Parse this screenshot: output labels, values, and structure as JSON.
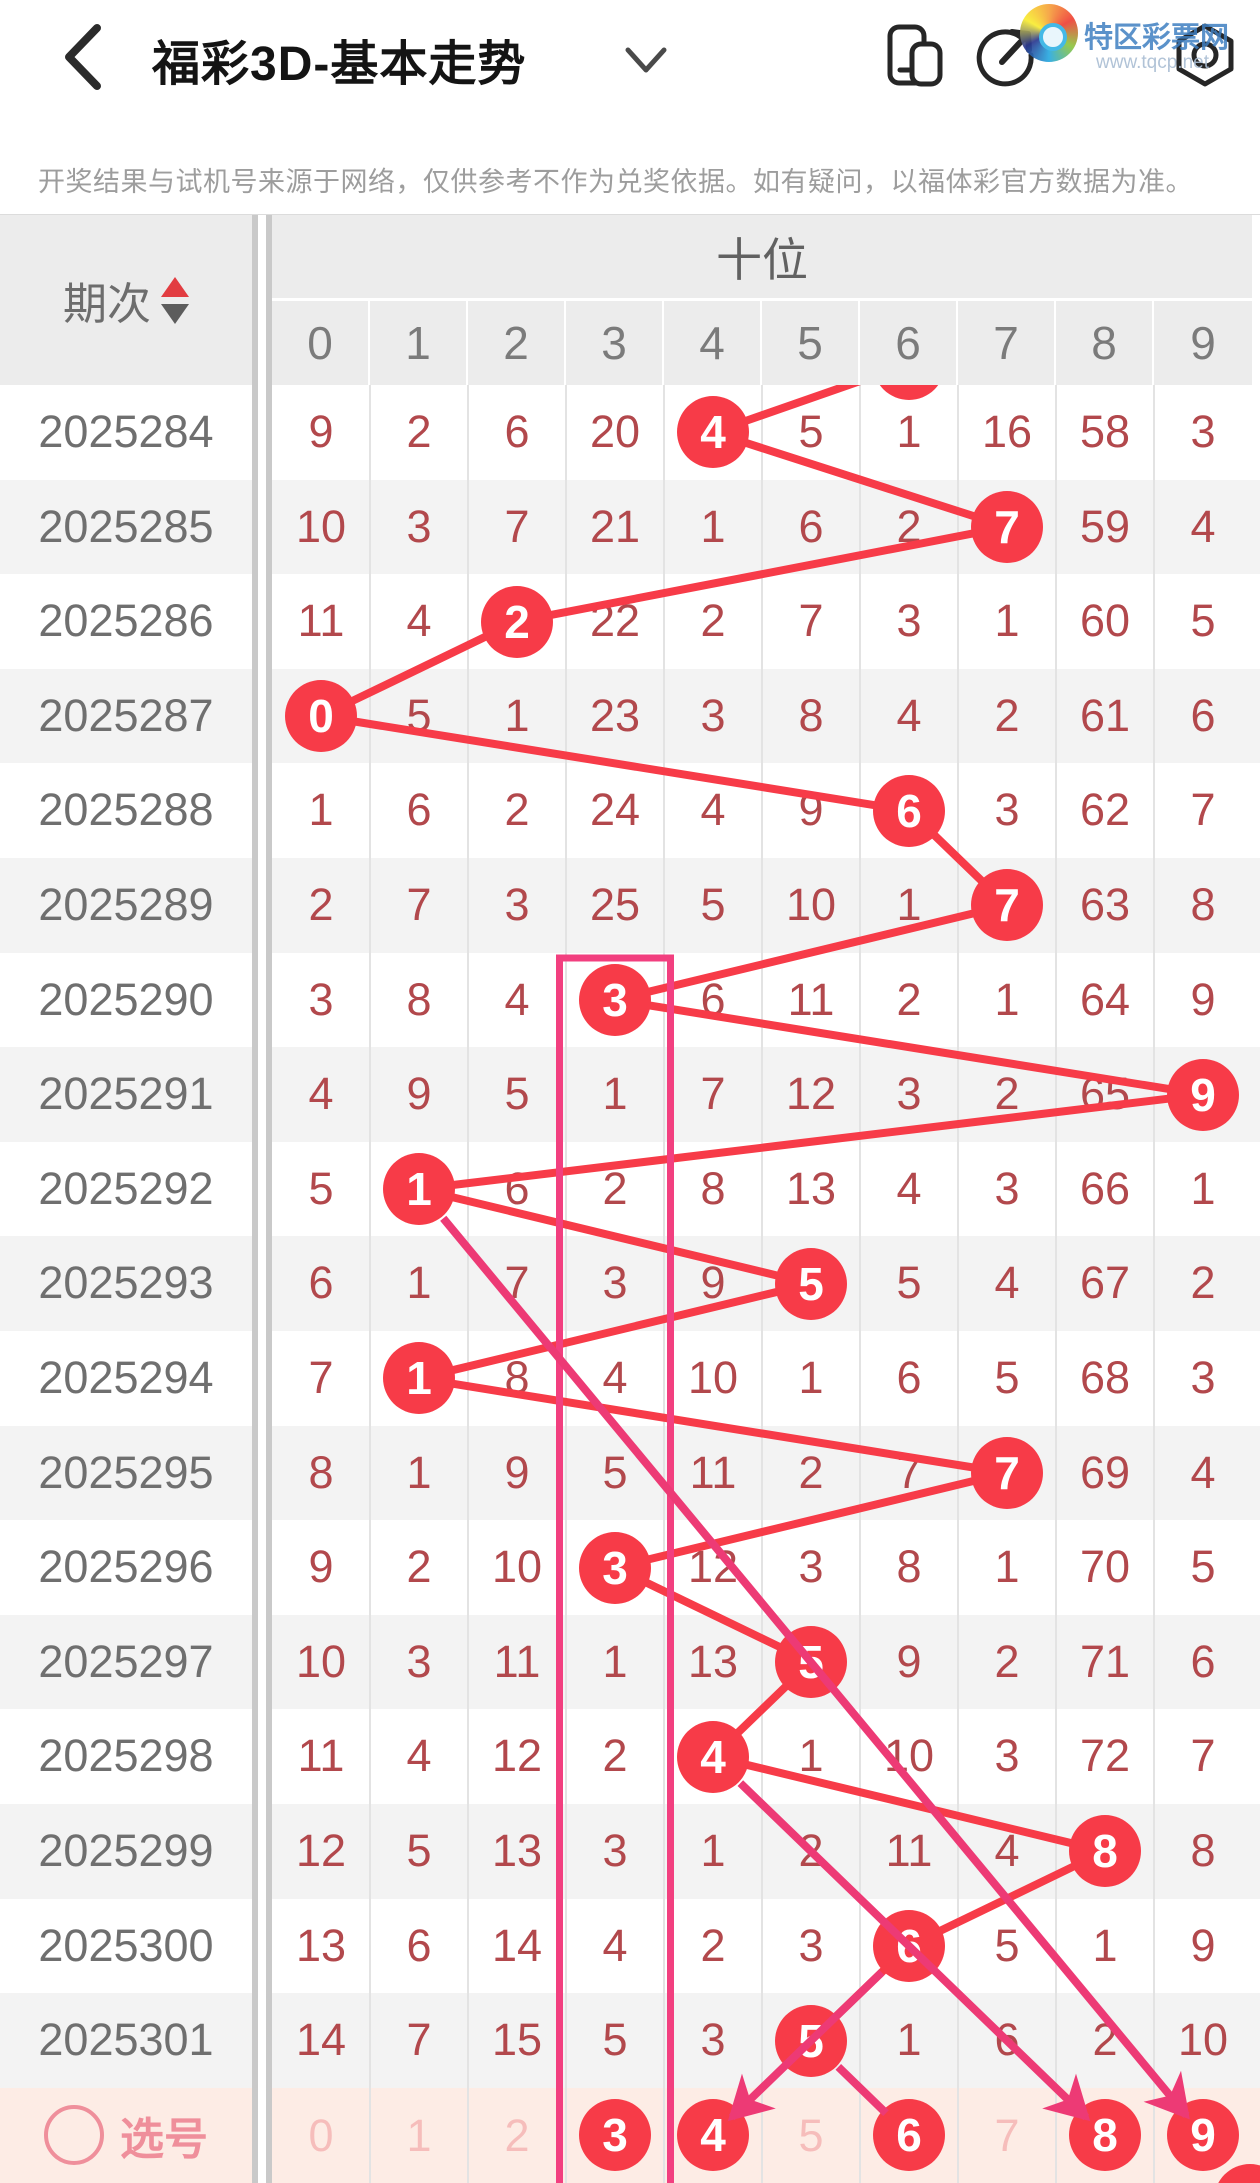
{
  "header": {
    "title": "福彩3D-基本走势",
    "back_icon": "back-chevron",
    "dropdown_icon": "chevron-down",
    "action_icons": [
      "pages-icon",
      "share-icon",
      "settings-nut-icon"
    ]
  },
  "watermark": {
    "site_name": "特区彩票网",
    "site_url": "www.tqcp.net"
  },
  "disclaimer": "开奖结果与试机号来源于网络，仅供参考不作为兑奖依据。如有疑问，以福体彩官方数据为准。",
  "chart_data": {
    "type": "table",
    "title": "福彩3D-基本走势 十位走势图",
    "row_header_label": "期次",
    "group_header": "十位",
    "columns": [
      "0",
      "1",
      "2",
      "3",
      "4",
      "5",
      "6",
      "7",
      "8",
      "9"
    ],
    "previous_drawn_col": 6,
    "rows": [
      {
        "period": "2025284",
        "values": [
          "9",
          "2",
          "6",
          "20",
          "4",
          "5",
          "1",
          "16",
          "58",
          "3"
        ],
        "drawn_col": 4
      },
      {
        "period": "2025285",
        "values": [
          "10",
          "3",
          "7",
          "21",
          "1",
          "6",
          "2",
          "7",
          "59",
          "4"
        ],
        "drawn_col": 7
      },
      {
        "period": "2025286",
        "values": [
          "11",
          "4",
          "2",
          "22",
          "2",
          "7",
          "3",
          "1",
          "60",
          "5"
        ],
        "drawn_col": 2
      },
      {
        "period": "2025287",
        "values": [
          "0",
          "5",
          "1",
          "23",
          "3",
          "8",
          "4",
          "2",
          "61",
          "6"
        ],
        "drawn_col": 0
      },
      {
        "period": "2025288",
        "values": [
          "1",
          "6",
          "2",
          "24",
          "4",
          "9",
          "6",
          "3",
          "62",
          "7"
        ],
        "drawn_col": 6
      },
      {
        "period": "2025289",
        "values": [
          "2",
          "7",
          "3",
          "25",
          "5",
          "10",
          "1",
          "7",
          "63",
          "8"
        ],
        "drawn_col": 7
      },
      {
        "period": "2025290",
        "values": [
          "3",
          "8",
          "4",
          "3",
          "6",
          "11",
          "2",
          "1",
          "64",
          "9"
        ],
        "drawn_col": 3
      },
      {
        "period": "2025291",
        "values": [
          "4",
          "9",
          "5",
          "1",
          "7",
          "12",
          "3",
          "2",
          "65",
          "9"
        ],
        "drawn_col": 9
      },
      {
        "period": "2025292",
        "values": [
          "5",
          "1",
          "6",
          "2",
          "8",
          "13",
          "4",
          "3",
          "66",
          "1"
        ],
        "drawn_col": 1
      },
      {
        "period": "2025293",
        "values": [
          "6",
          "1",
          "7",
          "3",
          "9",
          "5",
          "5",
          "4",
          "67",
          "2"
        ],
        "drawn_col": 5
      },
      {
        "period": "2025294",
        "values": [
          "7",
          "1",
          "8",
          "4",
          "10",
          "1",
          "6",
          "5",
          "68",
          "3"
        ],
        "drawn_col": 1
      },
      {
        "period": "2025295",
        "values": [
          "8",
          "1",
          "9",
          "5",
          "11",
          "2",
          "7",
          "7",
          "69",
          "4"
        ],
        "drawn_col": 7
      },
      {
        "period": "2025296",
        "values": [
          "9",
          "2",
          "10",
          "3",
          "12",
          "3",
          "8",
          "1",
          "70",
          "5"
        ],
        "drawn_col": 3
      },
      {
        "period": "2025297",
        "values": [
          "10",
          "3",
          "11",
          "1",
          "13",
          "5",
          "9",
          "2",
          "71",
          "6"
        ],
        "drawn_col": 5
      },
      {
        "period": "2025298",
        "values": [
          "11",
          "4",
          "12",
          "2",
          "4",
          "1",
          "10",
          "3",
          "72",
          "7"
        ],
        "drawn_col": 4
      },
      {
        "period": "2025299",
        "values": [
          "12",
          "5",
          "13",
          "3",
          "1",
          "2",
          "11",
          "4",
          "8",
          "8"
        ],
        "drawn_col": 8
      },
      {
        "period": "2025300",
        "values": [
          "13",
          "6",
          "14",
          "4",
          "2",
          "3",
          "6",
          "5",
          "1",
          "9"
        ],
        "drawn_col": 6
      },
      {
        "period": "2025301",
        "values": [
          "14",
          "7",
          "15",
          "5",
          "3",
          "5",
          "1",
          "6",
          "2",
          "10"
        ],
        "drawn_col": 5
      }
    ],
    "selection_row": {
      "label": "选号",
      "digits": [
        "0",
        "1",
        "2",
        "3",
        "4",
        "5",
        "6",
        "7",
        "8",
        "9"
      ],
      "selected": [
        3,
        4,
        6,
        8,
        9
      ],
      "arrow_targets": [
        4,
        8,
        9
      ]
    },
    "highlight_column": 3,
    "pink_links": [
      {
        "from_period": "2025292",
        "from_col": 1,
        "to_selection_col": 9,
        "arrow": true
      },
      {
        "from_period": "2025298",
        "from_col": 4,
        "to_selection_col": 8,
        "arrow": true
      },
      {
        "from_period": "2025300",
        "from_col": 6,
        "to_selection_col": 4,
        "arrow": true
      },
      {
        "from_period": "2025301",
        "from_col": 5,
        "to_selection_col": 6,
        "arrow": false
      }
    ],
    "colors": {
      "drawn_ball": "#f73b48",
      "trend_line": "#f73b48",
      "count_text": "#b2484c",
      "pink_link": "#ed3a75",
      "highlight_box": "#f23f7f",
      "stripe": "#f3f3f3",
      "header_bg": "#ececec",
      "selection_bg": "#fdece5",
      "selection_dim": "#f6bdbb"
    }
  }
}
